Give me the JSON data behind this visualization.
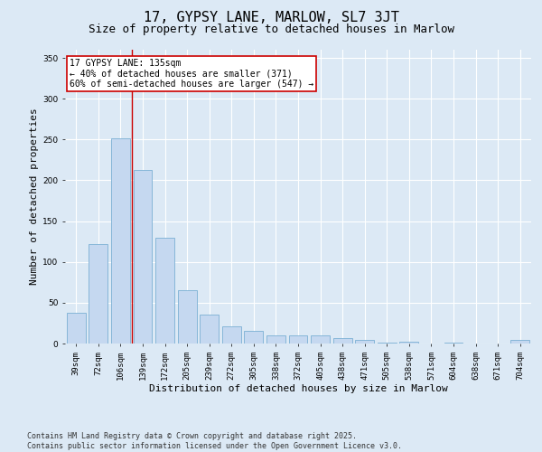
{
  "title": "17, GYPSY LANE, MARLOW, SL7 3JT",
  "subtitle": "Size of property relative to detached houses in Marlow",
  "xlabel": "Distribution of detached houses by size in Marlow",
  "ylabel": "Number of detached properties",
  "categories": [
    "39sqm",
    "72sqm",
    "106sqm",
    "139sqm",
    "172sqm",
    "205sqm",
    "239sqm",
    "272sqm",
    "305sqm",
    "338sqm",
    "372sqm",
    "405sqm",
    "438sqm",
    "471sqm",
    "505sqm",
    "538sqm",
    "571sqm",
    "604sqm",
    "638sqm",
    "671sqm",
    "704sqm"
  ],
  "values": [
    38,
    122,
    252,
    213,
    130,
    65,
    35,
    21,
    15,
    10,
    10,
    10,
    7,
    4,
    1,
    2,
    0,
    1,
    0,
    0,
    4
  ],
  "bar_color": "#c5d8f0",
  "bar_edge_color": "#7bafd4",
  "vline_color": "#cc0000",
  "vline_x": 2.5,
  "annotation_text": "17 GYPSY LANE: 135sqm\n← 40% of detached houses are smaller (371)\n60% of semi-detached houses are larger (547) →",
  "annotation_box_color": "#cc0000",
  "ylim": [
    0,
    360
  ],
  "yticks": [
    0,
    50,
    100,
    150,
    200,
    250,
    300,
    350
  ],
  "background_color": "#dce9f5",
  "grid_color": "#ffffff",
  "footer": "Contains HM Land Registry data © Crown copyright and database right 2025.\nContains public sector information licensed under the Open Government Licence v3.0.",
  "title_fontsize": 11,
  "subtitle_fontsize": 9,
  "xlabel_fontsize": 8,
  "ylabel_fontsize": 8,
  "tick_fontsize": 6.5,
  "annotation_fontsize": 7,
  "footer_fontsize": 6
}
